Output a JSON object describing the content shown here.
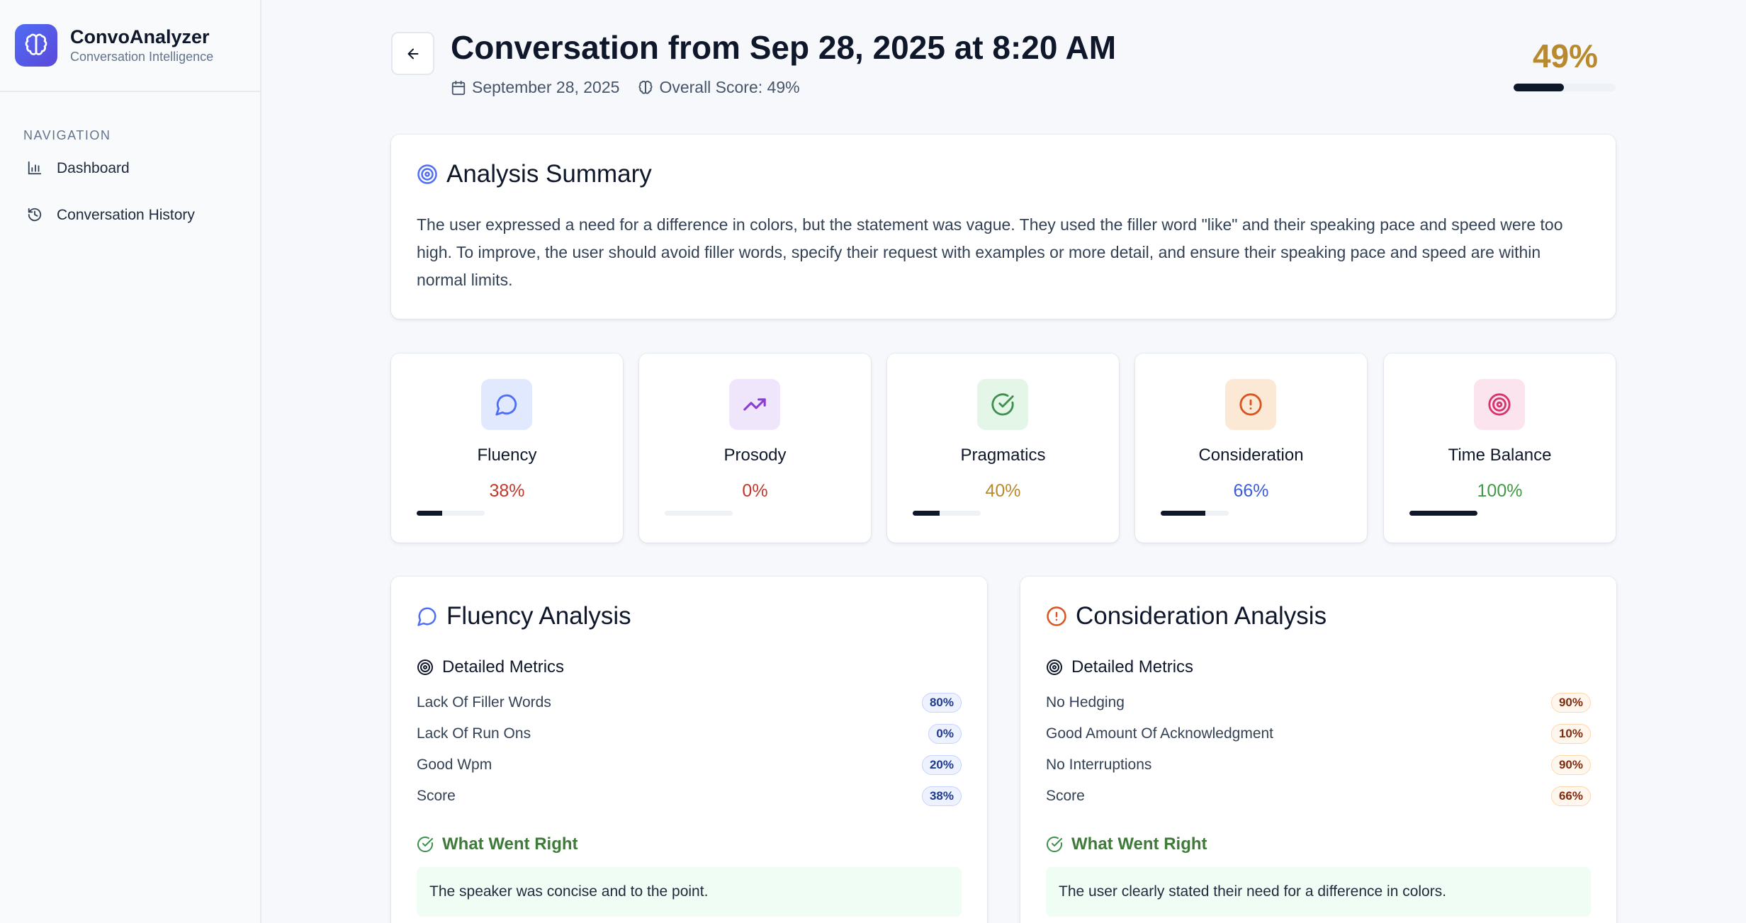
{
  "app": {
    "name": "ConvoAnalyzer",
    "subtitle": "Conversation Intelligence"
  },
  "nav": {
    "heading": "NAVIGATION",
    "items": [
      {
        "label": "Dashboard",
        "icon": "bar-chart-icon"
      },
      {
        "label": "Conversation History",
        "icon": "history-icon"
      }
    ]
  },
  "header": {
    "title": "Conversation from Sep 28, 2025 at 8:20 AM",
    "date": "September 28, 2025",
    "overall_label": "Overall Score: 49%",
    "overall_value": "49%",
    "overall_fraction": 0.49,
    "overall_color": "#b98a2d"
  },
  "summary": {
    "title": "Analysis Summary",
    "text": "The user expressed a need for a difference in colors, but the statement was vague. They used the filler word \"like\" and their speaking pace and speed were too high. To improve, the user should avoid filler words, specify their request with examples or more detail, and ensure their speaking pace and speed are within normal limits."
  },
  "metrics": [
    {
      "name": "Fluency",
      "value": "38%",
      "fraction": 0.38,
      "color": "#c0392b",
      "icon": "message-circle-icon",
      "icon_bg": "#e0e9fd",
      "icon_color": "#4f6df5"
    },
    {
      "name": "Prosody",
      "value": "0%",
      "fraction": 0.0,
      "color": "#c0392b",
      "icon": "trending-up-icon",
      "icon_bg": "#efe6fb",
      "icon_color": "#8a3fd1"
    },
    {
      "name": "Pragmatics",
      "value": "40%",
      "fraction": 0.4,
      "color": "#b98a2d",
      "icon": "check-circle-icon",
      "icon_bg": "#e3f6e8",
      "icon_color": "#3f8f4f"
    },
    {
      "name": "Consideration",
      "value": "66%",
      "fraction": 0.66,
      "color": "#3b5bdb",
      "icon": "alert-circle-icon",
      "icon_bg": "#fbe9d6",
      "icon_color": "#d9541e"
    },
    {
      "name": "Time Balance",
      "value": "100%",
      "fraction": 1.0,
      "color": "#3f9a45",
      "icon": "target-icon",
      "icon_bg": "#fbe4ee",
      "icon_color": "#d6336c"
    }
  ],
  "fluency": {
    "title": "Fluency Analysis",
    "metrics_heading": "Detailed Metrics",
    "rows": [
      {
        "label": "Lack Of Filler Words",
        "value": "80%"
      },
      {
        "label": "Lack Of Run Ons",
        "value": "0%"
      },
      {
        "label": "Good Wpm",
        "value": "20%"
      },
      {
        "label": "Score",
        "value": "38%"
      }
    ],
    "right_heading": "What Went Right",
    "right_text": "The speaker was concise and to the point."
  },
  "consideration": {
    "title": "Consideration Analysis",
    "metrics_heading": "Detailed Metrics",
    "rows": [
      {
        "label": "No Hedging",
        "value": "90%"
      },
      {
        "label": "Good Amount Of Acknowledgment",
        "value": "10%"
      },
      {
        "label": "No Interruptions",
        "value": "90%"
      },
      {
        "label": "Score",
        "value": "66%"
      }
    ],
    "right_heading": "What Went Right",
    "right_text": "The user clearly stated their need for a difference in colors."
  }
}
